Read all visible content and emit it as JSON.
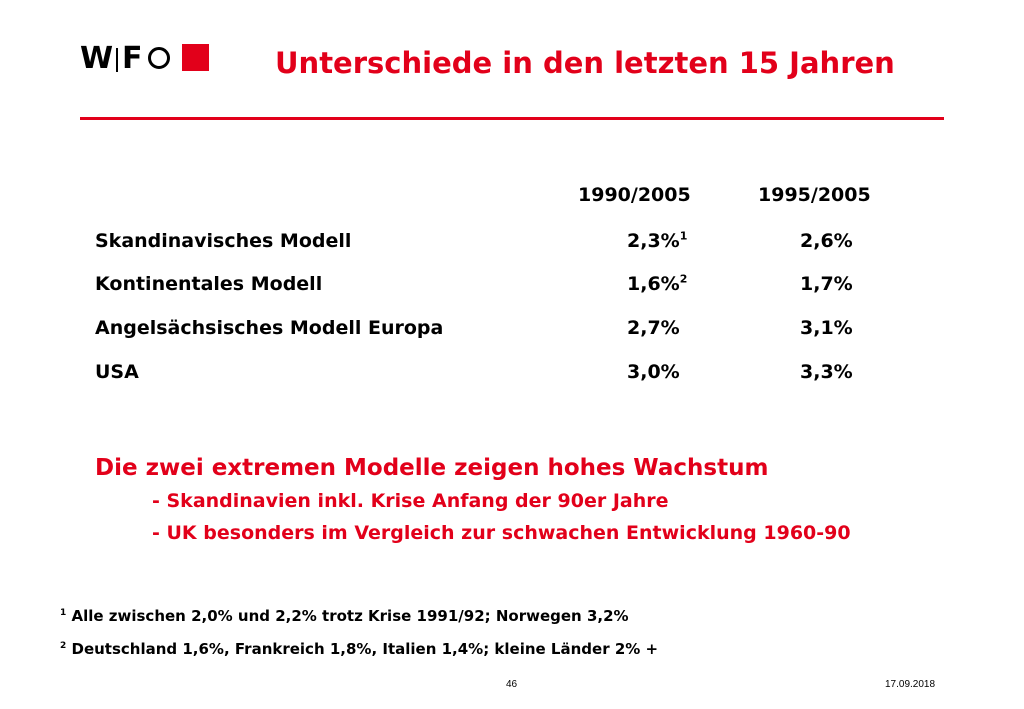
{
  "logo": {
    "w": "W",
    "f": "F"
  },
  "title": "Unterschiede in den letzten 15 Jahren",
  "table": {
    "headers": [
      "1990/2005",
      "1995/2005"
    ],
    "rows": [
      {
        "label": "Skandinavisches Modell",
        "v1": "2,3%",
        "v1_note": "1",
        "v2": "2,6%"
      },
      {
        "label": "Kontinentales Modell",
        "v1": "1,6%",
        "v1_note": "2",
        "v2": "1,7%"
      },
      {
        "label": "Angelsächsisches Modell Europa",
        "v1": "2,7%",
        "v1_note": "",
        "v2": "3,1%"
      },
      {
        "label": "USA",
        "v1": "3,0%",
        "v1_note": "",
        "v2": "3,3%"
      }
    ]
  },
  "conclusion": {
    "heading": "Die zwei extremen Modelle zeigen hohes Wachstum",
    "points": [
      "- Skandinavien inkl. Krise Anfang der 90er Jahre",
      "- UK besonders im Vergleich zur schwachen Entwicklung 1960-90"
    ]
  },
  "footnotes": [
    {
      "mark": "1",
      "text": " Alle zwischen 2,0% und 2,2% trotz Krise 1991/92; Norwegen 3,2%"
    },
    {
      "mark": "2",
      "text": " Deutschland 1,6%, Frankreich 1,8%, Italien 1,4%; kleine Länder 2% +"
    }
  ],
  "footer": {
    "page": "46",
    "date": "17.09.2018"
  },
  "colors": {
    "accent": "#e2001a"
  }
}
